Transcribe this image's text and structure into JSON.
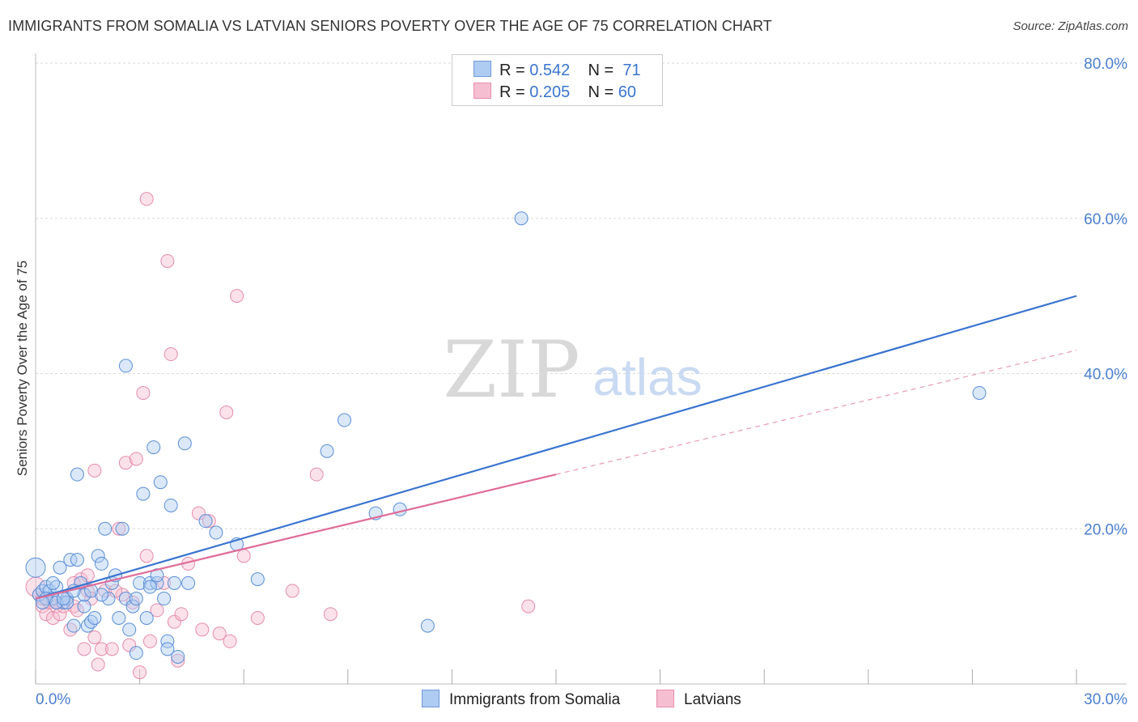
{
  "title": "IMMIGRANTS FROM SOMALIA VS LATVIAN SENIORS POVERTY OVER THE AGE OF 75 CORRELATION CHART",
  "source": "Source: ZipAtlas.com",
  "watermark": {
    "zip": "ZIP",
    "atlas": "atlas"
  },
  "legend": {
    "rows": [
      {
        "r_label": "R =",
        "r_value": "0.542",
        "n_label": "N =",
        "n_value": "71"
      },
      {
        "r_label": "R =",
        "r_value": "0.205",
        "n_label": "N =",
        "n_value": "60"
      }
    ]
  },
  "colors": {
    "blue": "#3a74d0",
    "pink": "#e06c98",
    "blue_fill": "#aecbf2",
    "pink_fill": "#f6bfd1"
  },
  "chart_data": {
    "type": "scatter",
    "title": "IMMIGRANTS FROM SOMALIA VS LATVIAN SENIORS POVERTY OVER THE AGE OF 75 CORRELATION CHART",
    "xlabel": "",
    "ylabel": "Seniors Poverty Over the Age of 75",
    "xlim": [
      0,
      30
    ],
    "ylim": [
      0,
      80
    ],
    "x_tick_labels": [
      "0.0%",
      "30.0%"
    ],
    "y_ticks": [
      20,
      40,
      60,
      80
    ],
    "y_tick_labels": [
      "20.0%",
      "40.0%",
      "60.0%",
      "80.0%"
    ],
    "series": [
      {
        "name": "Immigrants from Somalia",
        "color": "#3a74d0",
        "r": 0.542,
        "n": 71,
        "trend": {
          "x": [
            0,
            30
          ],
          "y": [
            11.0,
            50.0
          ],
          "style": "solid"
        },
        "points": [
          [
            0.0,
            15.0
          ],
          [
            0.1,
            11.5
          ],
          [
            0.2,
            12.0
          ],
          [
            0.3,
            12.5
          ],
          [
            0.4,
            12.0
          ],
          [
            0.5,
            11.0
          ],
          [
            0.6,
            12.5
          ],
          [
            0.7,
            15.0
          ],
          [
            0.8,
            10.5
          ],
          [
            0.9,
            11.0
          ],
          [
            1.0,
            16.0
          ],
          [
            1.1,
            7.5
          ],
          [
            1.2,
            16.0
          ],
          [
            1.3,
            13.0
          ],
          [
            1.4,
            10.0
          ],
          [
            1.5,
            7.5
          ],
          [
            1.6,
            8.0
          ],
          [
            1.7,
            8.5
          ],
          [
            1.8,
            16.5
          ],
          [
            1.9,
            15.5
          ],
          [
            2.0,
            20.0
          ],
          [
            2.1,
            11.0
          ],
          [
            2.2,
            13.0
          ],
          [
            2.3,
            14.0
          ],
          [
            2.5,
            20.0
          ],
          [
            2.6,
            11.0
          ],
          [
            2.7,
            7.0
          ],
          [
            2.8,
            10.0
          ],
          [
            2.9,
            4.0
          ],
          [
            3.0,
            13.0
          ],
          [
            3.1,
            24.5
          ],
          [
            3.2,
            8.5
          ],
          [
            3.3,
            13.0
          ],
          [
            3.4,
            30.5
          ],
          [
            3.5,
            13.0
          ],
          [
            3.6,
            26.0
          ],
          [
            3.7,
            11.0
          ],
          [
            3.8,
            5.5
          ],
          [
            3.9,
            23.0
          ],
          [
            4.0,
            13.0
          ],
          [
            4.1,
            3.5
          ],
          [
            4.3,
            31.0
          ],
          [
            4.4,
            13.0
          ],
          [
            4.9,
            21.0
          ],
          [
            5.2,
            19.5
          ],
          [
            5.8,
            18.0
          ],
          [
            6.4,
            13.5
          ],
          [
            8.4,
            30.0
          ],
          [
            8.9,
            34.0
          ],
          [
            9.8,
            22.0
          ],
          [
            10.5,
            22.5
          ],
          [
            11.3,
            7.5
          ],
          [
            14.0,
            60.0
          ],
          [
            1.2,
            27.0
          ],
          [
            2.6,
            41.0
          ],
          [
            0.3,
            11.0
          ],
          [
            0.6,
            10.5
          ],
          [
            0.9,
            10.5
          ],
          [
            1.4,
            11.5
          ],
          [
            1.9,
            11.5
          ],
          [
            2.4,
            8.5
          ],
          [
            3.8,
            4.5
          ],
          [
            3.5,
            14.0
          ],
          [
            0.2,
            10.5
          ],
          [
            0.5,
            13.0
          ],
          [
            0.8,
            11.0
          ],
          [
            1.1,
            12.0
          ],
          [
            1.6,
            12.0
          ],
          [
            2.9,
            11.0
          ],
          [
            3.3,
            12.5
          ],
          [
            27.2,
            37.5
          ]
        ]
      },
      {
        "name": "Latvians",
        "color": "#e06c98",
        "r": 0.205,
        "n": 60,
        "trend": {
          "x": [
            0,
            15
          ],
          "y": [
            11.0,
            27.0
          ],
          "style": "solid",
          "extension": {
            "x": [
              15,
              30
            ],
            "y": [
              27.0,
              43.0
            ],
            "style": "dashed"
          }
        },
        "points": [
          [
            0.0,
            12.5
          ],
          [
            0.1,
            11.5
          ],
          [
            0.2,
            10.0
          ],
          [
            0.3,
            9.0
          ],
          [
            0.4,
            10.5
          ],
          [
            0.5,
            8.5
          ],
          [
            0.6,
            10.0
          ],
          [
            0.7,
            9.0
          ],
          [
            0.8,
            10.0
          ],
          [
            0.9,
            11.0
          ],
          [
            1.0,
            7.0
          ],
          [
            1.1,
            10.0
          ],
          [
            1.2,
            9.5
          ],
          [
            1.3,
            13.5
          ],
          [
            1.4,
            4.5
          ],
          [
            1.5,
            12.0
          ],
          [
            1.6,
            11.0
          ],
          [
            1.7,
            6.0
          ],
          [
            1.8,
            2.5
          ],
          [
            1.9,
            4.5
          ],
          [
            2.0,
            12.0
          ],
          [
            2.2,
            4.5
          ],
          [
            2.4,
            20.0
          ],
          [
            2.5,
            11.5
          ],
          [
            2.6,
            28.5
          ],
          [
            2.7,
            5.0
          ],
          [
            2.9,
            29.0
          ],
          [
            3.0,
            1.5
          ],
          [
            3.1,
            37.5
          ],
          [
            3.2,
            16.5
          ],
          [
            3.3,
            5.5
          ],
          [
            3.5,
            9.5
          ],
          [
            3.7,
            13.0
          ],
          [
            3.8,
            54.5
          ],
          [
            3.9,
            42.5
          ],
          [
            4.0,
            8.0
          ],
          [
            4.1,
            3.0
          ],
          [
            4.2,
            9.0
          ],
          [
            4.4,
            15.5
          ],
          [
            4.7,
            22.0
          ],
          [
            5.0,
            21.0
          ],
          [
            5.3,
            6.5
          ],
          [
            5.6,
            5.5
          ],
          [
            5.8,
            50.0
          ],
          [
            6.0,
            16.5
          ],
          [
            6.4,
            8.5
          ],
          [
            7.4,
            12.0
          ],
          [
            8.1,
            27.0
          ],
          [
            8.5,
            9.0
          ],
          [
            14.2,
            10.0
          ],
          [
            3.2,
            62.5
          ],
          [
            5.5,
            35.0
          ],
          [
            1.7,
            27.5
          ],
          [
            0.2,
            11.0
          ],
          [
            0.6,
            10.5
          ],
          [
            1.1,
            13.0
          ],
          [
            2.3,
            12.0
          ],
          [
            1.5,
            14.0
          ],
          [
            4.8,
            7.0
          ],
          [
            2.8,
            10.5
          ]
        ]
      }
    ]
  }
}
